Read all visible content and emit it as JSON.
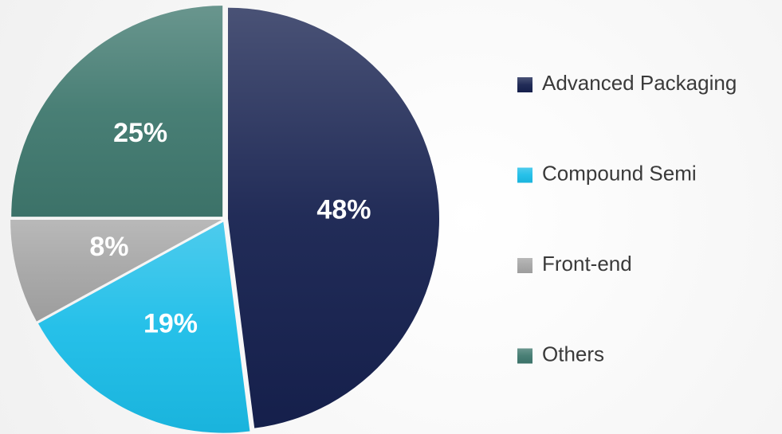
{
  "chart_data": {
    "type": "pie",
    "categories": [
      "Advanced Packaging",
      "Compound Semi",
      "Front-end",
      "Others"
    ],
    "values": [
      48,
      19,
      8,
      25
    ],
    "value_labels": [
      "48%",
      "19%",
      "8%",
      "25%"
    ],
    "colors": [
      "#16214f",
      "#1bbde8",
      "#a5a5a5",
      "#3f786e"
    ],
    "legend": "right"
  }
}
